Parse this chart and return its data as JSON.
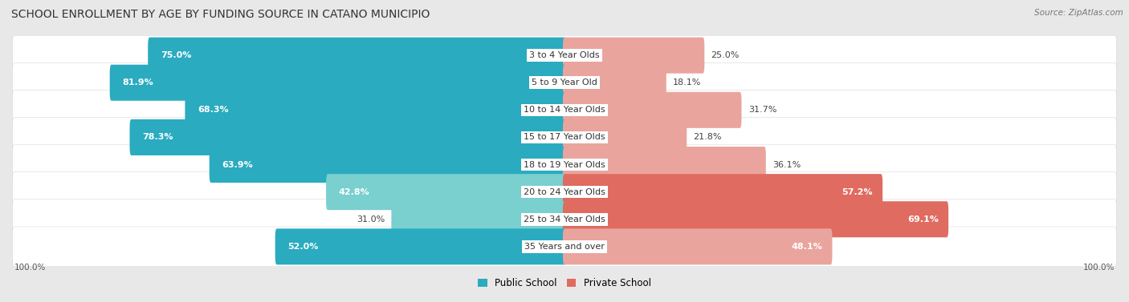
{
  "title": "SCHOOL ENROLLMENT BY AGE BY FUNDING SOURCE IN CATANO MUNICIPIO",
  "source": "Source: ZipAtlas.com",
  "categories": [
    "3 to 4 Year Olds",
    "5 to 9 Year Old",
    "10 to 14 Year Olds",
    "15 to 17 Year Olds",
    "18 to 19 Year Olds",
    "20 to 24 Year Olds",
    "25 to 34 Year Olds",
    "35 Years and over"
  ],
  "public_values": [
    75.0,
    81.9,
    68.3,
    78.3,
    63.9,
    42.8,
    31.0,
    52.0
  ],
  "private_values": [
    25.0,
    18.1,
    31.7,
    21.8,
    36.1,
    57.2,
    69.1,
    48.1
  ],
  "public_color_high": "#2AABBF",
  "public_color_low": "#7ACFCF",
  "private_color_high": "#E06B60",
  "private_color_low": "#EAA49E",
  "public_label": "Public School",
  "private_label": "Private School",
  "bg_color": "#e8e8e8",
  "bar_bg_color": "#ffffff",
  "title_fontsize": 10,
  "label_fontsize": 8,
  "value_fontsize": 8,
  "axis_label_fontsize": 7.5,
  "legend_fontsize": 8.5,
  "high_threshold": 50
}
